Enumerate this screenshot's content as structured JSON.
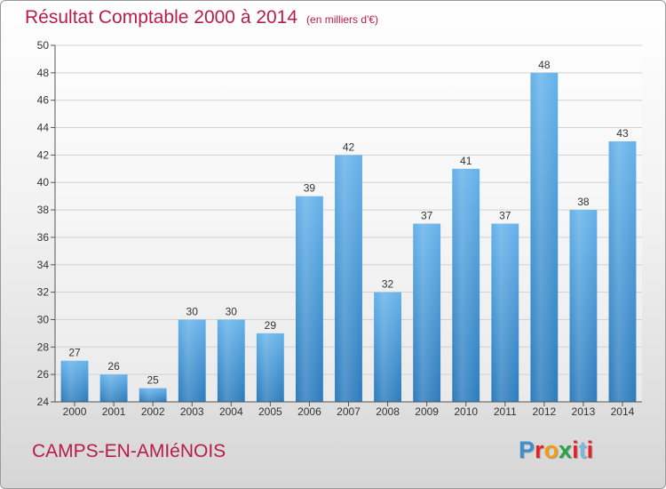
{
  "header": {
    "title": "Résultat Comptable 2000 à 2014",
    "unit": "(en milliers d'€)"
  },
  "footer": {
    "commune": "CAMPS-EN-AMIéNOIS",
    "brand": "Proxiti"
  },
  "colors": {
    "title": "#b81c4c",
    "bar_light": "#64b2ea",
    "bar_dark": "#2b7bbd",
    "logo_letters": [
      "#3b8fd0",
      "#e2232a",
      "#f39c12",
      "#2aa34a",
      "#e2232a",
      "#7ab8e2",
      "#e2232a"
    ]
  },
  "chart_data": {
    "type": "bar",
    "title": "Résultat Comptable 2000 à 2014",
    "subtitle": "(en milliers d'€)",
    "categories": [
      "2000",
      "2001",
      "2002",
      "2003",
      "2004",
      "2005",
      "2006",
      "2007",
      "2008",
      "2009",
      "2010",
      "2011",
      "2012",
      "2013",
      "2014"
    ],
    "values": [
      27,
      26,
      25,
      30,
      30,
      29,
      39,
      42,
      32,
      37,
      41,
      37,
      48,
      38,
      43
    ],
    "ylim": [
      24,
      50
    ],
    "yticks": [
      24,
      26,
      28,
      30,
      32,
      34,
      36,
      38,
      40,
      42,
      44,
      46,
      48,
      50
    ],
    "grid": true,
    "legend": "none",
    "data_labels": true
  }
}
